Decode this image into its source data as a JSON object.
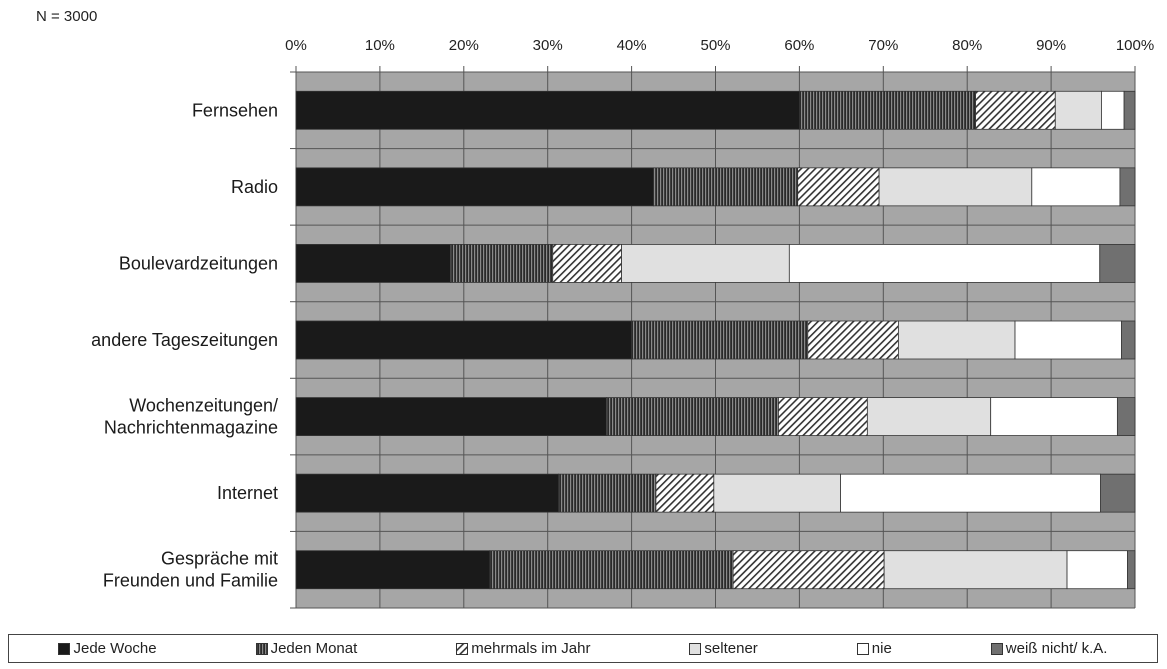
{
  "note": "N = 3000",
  "chart_data": {
    "type": "bar",
    "orientation": "horizontal",
    "stacked": true,
    "percent_stacked": true,
    "title": "",
    "xlabel": "",
    "ylabel": "",
    "xlim": [
      0,
      100
    ],
    "x_tick_labels": [
      "0%",
      "10%",
      "20%",
      "30%",
      "40%",
      "50%",
      "60%",
      "70%",
      "80%",
      "90%",
      "100%"
    ],
    "grid": true,
    "legend_position": "bottom",
    "categories": [
      [
        "Fernsehen"
      ],
      [
        "Radio"
      ],
      [
        "Boulevardzeitungen"
      ],
      [
        "andere Tageszeitungen"
      ],
      [
        "Wochenzeitungen/",
        "Nachrichtenmagazine"
      ],
      [
        "Internet"
      ],
      [
        "Gespräche mit",
        "Freunden und Familie"
      ]
    ],
    "series": [
      {
        "name": "Jede Woche",
        "color": "#1a1a1a",
        "pattern": "solid",
        "values": [
          60.0,
          42.6,
          18.4,
          40.0,
          37.0,
          31.3,
          23.1
        ]
      },
      {
        "name": "Jeden Monat",
        "color": "#4a4a4a",
        "pattern": "vertical",
        "values": [
          21.0,
          17.2,
          12.2,
          21.0,
          20.5,
          11.6,
          29.0
        ]
      },
      {
        "name": "mehrmals im Jahr",
        "color": "#ffffff",
        "pattern": "diagonal",
        "values": [
          9.5,
          9.7,
          8.2,
          10.8,
          10.6,
          6.9,
          18.0
        ]
      },
      {
        "name": "seltener",
        "color": "#e0e0e0",
        "pattern": "solid",
        "values": [
          5.5,
          18.2,
          20.0,
          13.9,
          14.7,
          15.1,
          21.8
        ]
      },
      {
        "name": "nie",
        "color": "#ffffff",
        "pattern": "solid",
        "values": [
          2.7,
          10.5,
          37.0,
          12.7,
          15.1,
          31.0,
          7.2
        ]
      },
      {
        "name": "weiß nicht/ k.A.",
        "color": "#707070",
        "pattern": "solid",
        "values": [
          1.3,
          1.8,
          4.2,
          1.6,
          2.1,
          4.1,
          0.9
        ]
      }
    ],
    "colors": {
      "plot_background": "#a6a6a6",
      "gridline": "#555555"
    }
  }
}
